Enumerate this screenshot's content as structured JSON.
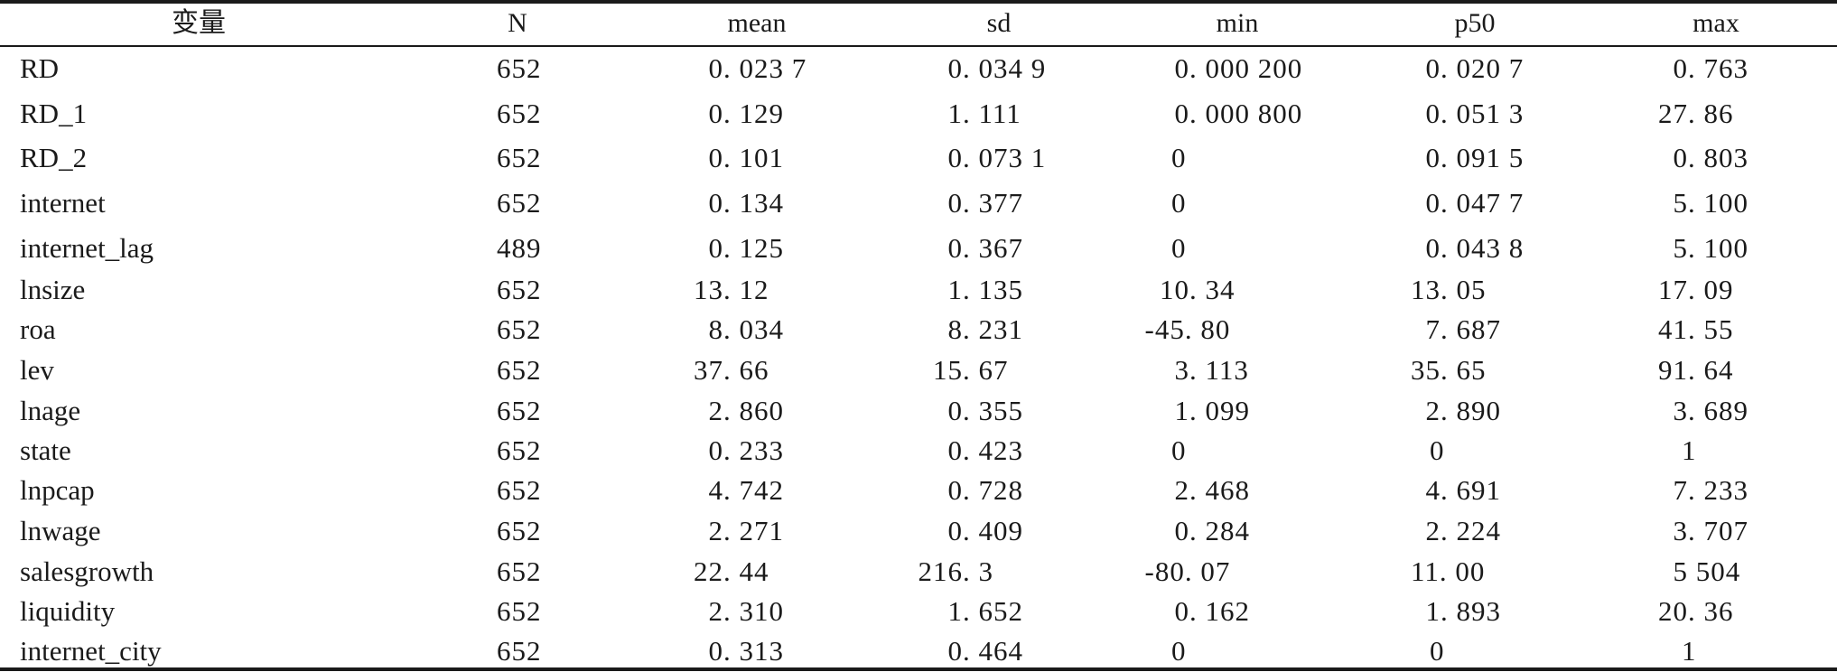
{
  "table": {
    "headers": [
      "变量",
      "N",
      "mean",
      "sd",
      "min",
      "p50",
      "max"
    ],
    "rows": [
      [
        "RD",
        "652",
        "0. 023 7",
        "0. 034 9",
        "0. 000 200",
        "0. 020 7",
        "0. 763"
      ],
      [
        "RD_1",
        "652",
        "0. 129",
        "1. 111",
        "0. 000 800",
        "0. 051 3",
        "27. 86"
      ],
      [
        "RD_2",
        "652",
        "0. 101",
        "0. 073 1",
        "0",
        "0. 091 5",
        "0. 803"
      ],
      [
        "internet",
        "652",
        "0. 134",
        "0. 377",
        "0",
        "0. 047 7",
        "5. 100"
      ],
      [
        "internet_lag",
        "489",
        "0. 125",
        "0. 367",
        "0",
        "0. 043 8",
        "5. 100"
      ],
      [
        "lnsize",
        "652",
        "13. 12",
        "1. 135",
        "10. 34",
        "13. 05",
        "17. 09"
      ],
      [
        "roa",
        "652",
        "8. 034",
        "8. 231",
        "-45. 80",
        "7. 687",
        "41. 55"
      ],
      [
        "lev",
        "652",
        "37. 66",
        "15. 67",
        "3. 113",
        "35. 65",
        "91. 64"
      ],
      [
        "lnage",
        "652",
        "2. 860",
        "0. 355",
        "1. 099",
        "2. 890",
        "3. 689"
      ],
      [
        "state",
        "652",
        "0. 233",
        "0. 423",
        "0",
        "0",
        "1"
      ],
      [
        "lnpcap",
        "652",
        "4. 742",
        "0. 728",
        "2. 468",
        "4. 691",
        "7. 233"
      ],
      [
        "lnwage",
        "652",
        "2. 271",
        "0. 409",
        "0. 284",
        "2. 224",
        "3. 707"
      ],
      [
        "salesgrowth",
        "652",
        "22. 44",
        "216. 3",
        "-80. 07",
        "11. 00",
        "5 504"
      ],
      [
        "liquidity",
        "652",
        "2. 310",
        "1. 652",
        "0. 162",
        "1. 893",
        "20. 36"
      ],
      [
        "internet_city",
        "652",
        "0. 313",
        "0. 464",
        "0",
        "0",
        "1"
      ]
    ]
  }
}
